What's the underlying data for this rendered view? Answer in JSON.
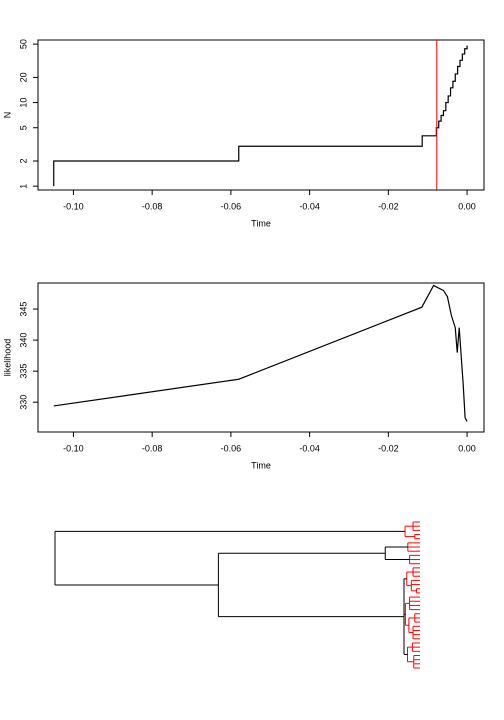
{
  "chart_data": [
    {
      "type": "step",
      "xlabel": "Time",
      "ylabel": "N",
      "log_y": true,
      "x": [
        -0.105,
        -0.105,
        -0.058,
        -0.0114,
        -0.0078,
        -0.0072,
        -0.0066,
        -0.006,
        -0.0054,
        -0.0048,
        -0.0042,
        -0.0036,
        -0.003,
        -0.0024,
        -0.0018,
        -0.0012,
        -0.0006,
        0
      ],
      "values": [
        1,
        2,
        3,
        4,
        5,
        6,
        7,
        8,
        10,
        12,
        15,
        18,
        22,
        27,
        32,
        38,
        44,
        48
      ],
      "color": "#000000",
      "vline": -0.0077,
      "vline_color": "#ff0000",
      "xlim": [
        -0.109,
        0.0043
      ],
      "ylim": [
        0.9,
        56
      ],
      "xticks": [
        {
          "value": -0.1,
          "label": "-0.10"
        },
        -0.08,
        -0.06,
        -0.04,
        -0.02,
        {
          "value": 0,
          "label": "0.00"
        }
      ],
      "yticks": [
        1,
        2,
        5,
        10,
        20,
        50
      ]
    },
    {
      "type": "line",
      "xlabel": "Time",
      "ylabel": "likelihood",
      "x": [
        -0.105,
        -0.058,
        -0.0115,
        -0.0085,
        -0.007,
        -0.006,
        -0.005,
        -0.004,
        -0.003,
        -0.0025,
        -0.002,
        -0.0015,
        -0.001,
        -0.0005,
        0
      ],
      "values": [
        329.4,
        333.7,
        345.3,
        348.8,
        348.3,
        348,
        347,
        344,
        342,
        338,
        342,
        337.5,
        333,
        327.5,
        326.9
      ],
      "color": "#000000",
      "xlim": [
        -0.109,
        0.0043
      ],
      "ylim": [
        325.2,
        349.2
      ],
      "xticks": [
        {
          "value": -0.1,
          "label": "-0.10"
        },
        -0.08,
        -0.06,
        -0.04,
        -0.02,
        {
          "value": 0,
          "label": "0.00"
        }
      ],
      "yticks": [
        330,
        335,
        340,
        345
      ]
    },
    {
      "type": "dendrogram",
      "xlim": [
        0.105,
        0
      ],
      "cut": 0.0045,
      "color": "#000000",
      "cut_color": "#ff0000",
      "tree": {
        "height": 0.105,
        "children": [
          {
            "height": 0.0043,
            "children": [
              {
                "height": 0.002,
                "children": [
                  {
                    "height": 0
                  },
                  {
                    "height": 0
                  },
                  {
                    "height": 0
                  }
                ]
              },
              {
                "height": 0.0015,
                "children": [
                  {
                    "height": 0
                  },
                  {
                    "height": 0
                  }
                ]
              }
            ]
          },
          {
            "height": 0.058,
            "children": [
              {
                "height": 0.01,
                "children": [
                  {
                    "height": 0.0035,
                    "children": [
                      {
                        "height": 0
                      },
                      {
                        "height": 0
                      },
                      {
                        "height": 0
                      }
                    ]
                  },
                  {
                    "height": 0.003,
                    "children": [
                      {
                        "height": 0
                      },
                      {
                        "height": 0
                      },
                      {
                        "height": 0
                      }
                    ]
                  }
                ]
              },
              {
                "height": 0.0046,
                "children": [
                  {
                    "height": 0.0038,
                    "children": [
                      {
                        "height": 0.002,
                        "children": [
                          {
                            "height": 0
                          },
                          {
                            "height": 0
                          },
                          {
                            "height": 0
                          }
                        ]
                      },
                      {
                        "height": 0.0025,
                        "children": [
                          {
                            "height": 0
                          },
                          {
                            "height": 0
                          },
                          {
                            "height": 0.001,
                            "children": [
                              {
                                "height": 0
                              },
                              {
                                "height": 0
                              }
                            ]
                          }
                        ]
                      }
                    ]
                  },
                  {
                    "height": 0.0042,
                    "children": [
                      {
                        "height": 0.003,
                        "children": [
                          {
                            "height": 0
                          },
                          {
                            "height": 0
                          },
                          {
                            "height": 0
                          },
                          {
                            "height": 0
                          }
                        ]
                      },
                      {
                        "height": 0.0032,
                        "children": [
                          {
                            "height": 0.0015,
                            "children": [
                              {
                                "height": 0
                              },
                              {
                                "height": 0
                              },
                              {
                                "height": 0
                              }
                            ]
                          },
                          {
                            "height": 0.002,
                            "children": [
                              {
                                "height": 0
                              },
                              {
                                "height": 0
                              },
                              {
                                "height": 0
                              },
                              {
                                "height": 0
                              }
                            ]
                          }
                        ]
                      }
                    ]
                  },
                  {
                    "height": 0.0036,
                    "children": [
                      {
                        "height": 0.0022,
                        "children": [
                          {
                            "height": 0
                          },
                          {
                            "height": 0
                          },
                          {
                            "height": 0
                          }
                        ]
                      },
                      {
                        "height": 0.0018,
                        "children": [
                          {
                            "height": 0
                          },
                          {
                            "height": 0
                          },
                          {
                            "height": 0
                          },
                          {
                            "height": 0
                          }
                        ]
                      }
                    ]
                  }
                ]
              }
            ]
          }
        ]
      }
    }
  ]
}
